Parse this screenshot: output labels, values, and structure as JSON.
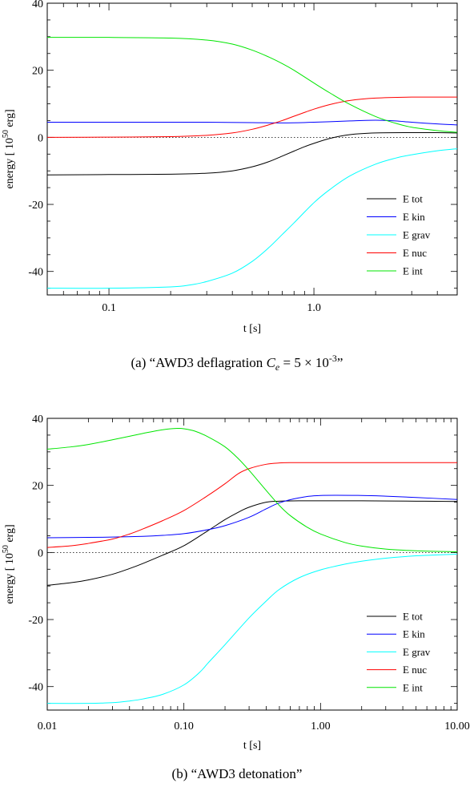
{
  "chart_data": [
    {
      "type": "line",
      "caption": {
        "prefix": "(a)",
        "text_before": "“AWD3 deflagration ",
        "var_main": "C",
        "var_sub": "e",
        "text_mid": " = 5 × 10",
        "exponent": "-3",
        "text_after": "”"
      },
      "xlabel": "t [s]",
      "ylabel": {
        "before": "energy [ 10",
        "sup": "50",
        "after": " erg]"
      },
      "xscale": "log",
      "xlim": [
        0.05,
        5.0
      ],
      "ylim": [
        -47,
        40
      ],
      "xticks": [
        {
          "v": 0.1,
          "label": "0.1"
        },
        {
          "v": 1.0,
          "label": "1.0"
        }
      ],
      "yticks": [
        {
          "v": -40,
          "label": "-40"
        },
        {
          "v": -20,
          "label": "-20"
        },
        {
          "v": 0,
          "label": "0"
        },
        {
          "v": 20,
          "label": "20"
        },
        {
          "v": 40,
          "label": "40"
        }
      ],
      "zero_line": "dotted",
      "legend_position": "bottom-right",
      "series": [
        {
          "name": "E tot",
          "color": "#000000",
          "x": [
            0.05,
            0.1,
            0.2,
            0.3,
            0.4,
            0.5,
            0.6,
            0.7,
            0.8,
            0.9,
            1.0,
            1.2,
            1.5,
            2.0,
            3.0,
            4.0,
            5.0
          ],
          "y": [
            -11.2,
            -11.1,
            -11.0,
            -10.7,
            -10.0,
            -8.8,
            -7.3,
            -5.6,
            -4.1,
            -2.8,
            -1.8,
            -0.3,
            0.8,
            1.3,
            1.4,
            1.4,
            1.3
          ]
        },
        {
          "name": "E kin",
          "color": "#0000ff",
          "x": [
            0.05,
            0.1,
            0.2,
            0.3,
            0.5,
            0.7,
            1.0,
            1.5,
            2.0,
            2.5,
            3.0,
            4.0,
            5.0
          ],
          "y": [
            4.5,
            4.5,
            4.5,
            4.5,
            4.4,
            4.3,
            4.5,
            4.9,
            5.1,
            4.9,
            4.5,
            4.0,
            3.7
          ]
        },
        {
          "name": "E grav",
          "color": "#00ffff",
          "x": [
            0.05,
            0.1,
            0.2,
            0.25,
            0.3,
            0.4,
            0.5,
            0.6,
            0.7,
            0.8,
            1.0,
            1.2,
            1.5,
            2.0,
            2.5,
            3.0,
            4.0,
            5.0
          ],
          "y": [
            -45.0,
            -45.0,
            -44.6,
            -44.0,
            -43.0,
            -40.5,
            -37.0,
            -33.0,
            -29.0,
            -25.5,
            -19.5,
            -15.5,
            -11.5,
            -8.0,
            -6.2,
            -5.2,
            -4.0,
            -3.4
          ]
        },
        {
          "name": "E nuc",
          "color": "#ff0000",
          "x": [
            0.05,
            0.1,
            0.2,
            0.3,
            0.4,
            0.5,
            0.6,
            0.7,
            0.8,
            1.0,
            1.2,
            1.5,
            2.0,
            3.0,
            4.0,
            5.0
          ],
          "y": [
            0.0,
            0.05,
            0.2,
            0.6,
            1.3,
            2.4,
            3.7,
            5.0,
            6.3,
            8.4,
            9.8,
            11.0,
            11.7,
            12.0,
            12.0,
            12.0
          ]
        },
        {
          "name": "E int",
          "color": "#00e600",
          "x": [
            0.05,
            0.1,
            0.2,
            0.3,
            0.4,
            0.5,
            0.6,
            0.7,
            0.8,
            1.0,
            1.2,
            1.5,
            2.0,
            2.5,
            3.0,
            4.0,
            5.0
          ],
          "y": [
            29.8,
            29.8,
            29.6,
            29.0,
            27.8,
            26.0,
            24.0,
            22.0,
            20.0,
            16.2,
            13.2,
            9.8,
            6.2,
            4.2,
            3.0,
            2.0,
            1.5
          ]
        }
      ]
    },
    {
      "type": "line",
      "caption": {
        "prefix": "(b)",
        "text": "“AWD3 detonation”"
      },
      "xlabel": "t [s]",
      "ylabel": {
        "before": "energy [ 10",
        "sup": "50",
        "after": " erg]"
      },
      "xscale": "log",
      "xlim": [
        0.01,
        10.0
      ],
      "ylim": [
        -47,
        40
      ],
      "xticks": [
        {
          "v": 0.01,
          "label": "0.01"
        },
        {
          "v": 0.1,
          "label": "0.10"
        },
        {
          "v": 1.0,
          "label": "1.00"
        },
        {
          "v": 10.0,
          "label": "10.00"
        }
      ],
      "yticks": [
        {
          "v": -40,
          "label": "-40"
        },
        {
          "v": -20,
          "label": "-20"
        },
        {
          "v": 0,
          "label": "0"
        },
        {
          "v": 20,
          "label": "20"
        },
        {
          "v": 40,
          "label": "40"
        }
      ],
      "zero_line": "dotted",
      "legend_position": "bottom-right",
      "series": [
        {
          "name": "E tot",
          "color": "#000000",
          "x": [
            0.01,
            0.015,
            0.02,
            0.03,
            0.04,
            0.05,
            0.07,
            0.1,
            0.15,
            0.2,
            0.25,
            0.3,
            0.4,
            0.5,
            0.7,
            1.0,
            2.0,
            5.0,
            10.0
          ],
          "y": [
            -9.8,
            -9.0,
            -8.2,
            -6.5,
            -4.8,
            -3.3,
            -0.8,
            2.0,
            6.5,
            9.8,
            12.0,
            13.5,
            15.0,
            15.3,
            15.4,
            15.4,
            15.4,
            15.3,
            15.2
          ]
        },
        {
          "name": "E kin",
          "color": "#0000ff",
          "x": [
            0.01,
            0.02,
            0.03,
            0.05,
            0.07,
            0.1,
            0.15,
            0.2,
            0.3,
            0.4,
            0.5,
            0.7,
            1.0,
            2.0,
            3.0,
            5.0,
            10.0
          ],
          "y": [
            4.4,
            4.5,
            4.6,
            4.8,
            5.1,
            5.6,
            6.8,
            8.0,
            10.5,
            13.0,
            14.8,
            16.3,
            17.0,
            17.0,
            16.8,
            16.4,
            15.8
          ]
        },
        {
          "name": "E grav",
          "color": "#00ffff",
          "x": [
            0.01,
            0.02,
            0.03,
            0.04,
            0.05,
            0.07,
            0.1,
            0.13,
            0.15,
            0.2,
            0.3,
            0.4,
            0.5,
            0.7,
            1.0,
            1.5,
            2.0,
            3.0,
            5.0,
            10.0
          ],
          "y": [
            -45.0,
            -45.0,
            -44.8,
            -44.3,
            -43.7,
            -42.3,
            -39.5,
            -35.8,
            -33.0,
            -27.5,
            -19.5,
            -14.5,
            -11.0,
            -7.5,
            -5.2,
            -3.5,
            -2.6,
            -1.7,
            -1.0,
            -0.5
          ]
        },
        {
          "name": "E nuc",
          "color": "#ff0000",
          "x": [
            0.01,
            0.015,
            0.02,
            0.03,
            0.04,
            0.05,
            0.07,
            0.1,
            0.15,
            0.2,
            0.25,
            0.3,
            0.4,
            0.5,
            0.6,
            1.0,
            2.0,
            5.0,
            10.0
          ],
          "y": [
            1.5,
            2.0,
            2.7,
            4.0,
            5.5,
            7.0,
            9.5,
            12.5,
            17.0,
            20.5,
            23.5,
            25.0,
            26.3,
            26.7,
            26.8,
            26.8,
            26.8,
            26.8,
            26.8
          ]
        },
        {
          "name": "E int",
          "color": "#00e600",
          "x": [
            0.01,
            0.015,
            0.02,
            0.03,
            0.05,
            0.07,
            0.09,
            0.1,
            0.12,
            0.15,
            0.2,
            0.25,
            0.3,
            0.4,
            0.5,
            0.6,
            0.8,
            1.0,
            1.5,
            2.0,
            3.0,
            5.0,
            10.0
          ],
          "y": [
            30.8,
            31.5,
            32.2,
            33.6,
            35.5,
            36.6,
            37.0,
            36.9,
            36.2,
            34.5,
            31.5,
            28.0,
            24.5,
            18.5,
            14.0,
            11.0,
            7.5,
            5.5,
            3.0,
            1.9,
            1.0,
            0.5,
            0.2
          ]
        }
      ]
    }
  ]
}
